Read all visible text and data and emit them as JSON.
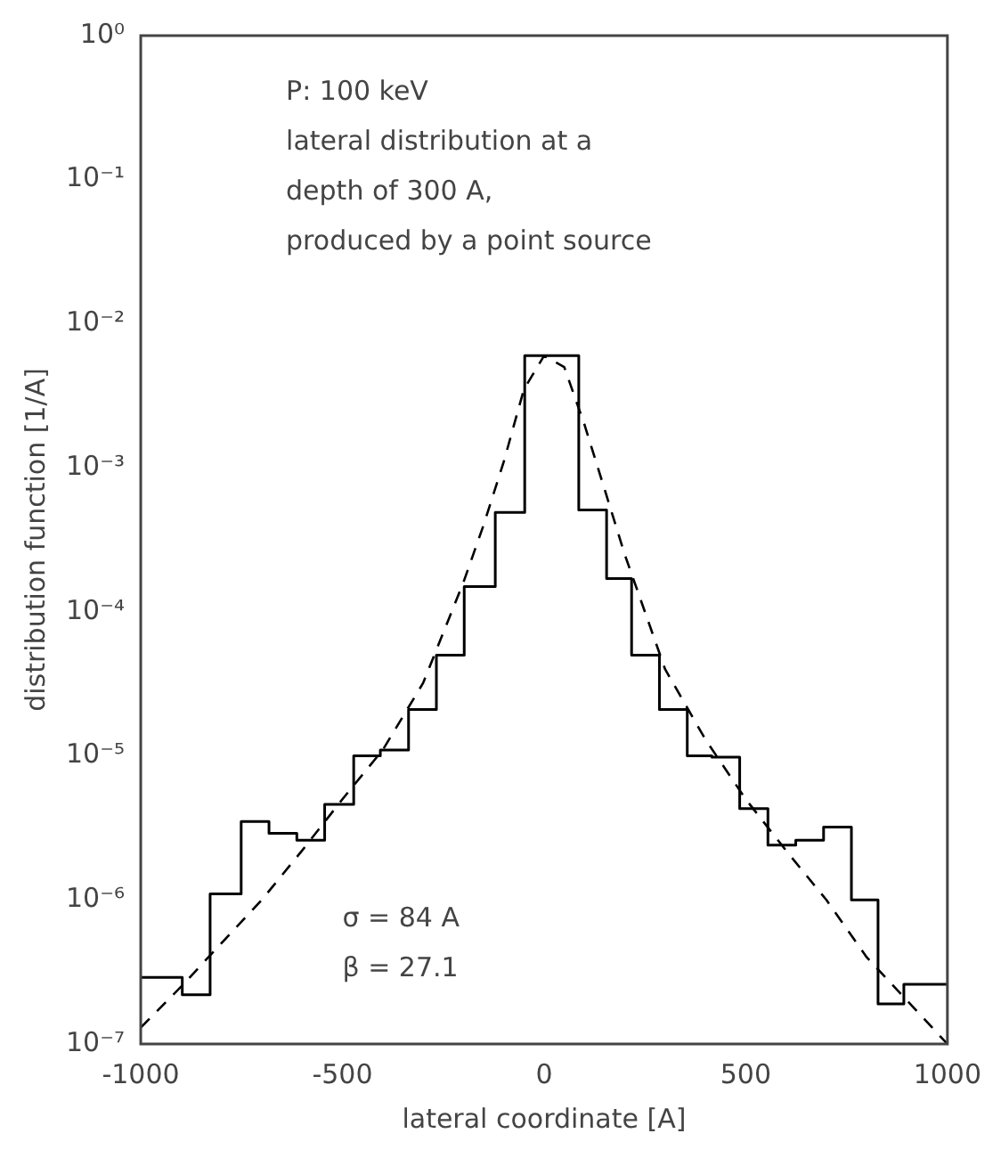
{
  "chart_data": {
    "type": "histogram",
    "xlabel": "lateral coordinate [A]",
    "ylabel": "distribution function [1/A]",
    "bins": [
      -1000,
      -897,
      -828,
      -751,
      -682,
      -613,
      -544,
      -472,
      -406,
      -336,
      -267,
      -198,
      -121,
      -48,
      86,
      155,
      217,
      286,
      355,
      416,
      485,
      555,
      624,
      693,
      762,
      828,
      892,
      1000
    ],
    "values": [
      2.9e-07,
      2.2e-07,
      1.1e-06,
      3.5e-06,
      2.9e-06,
      2.6e-06,
      4.6e-06,
      1e-05,
      1.1e-05,
      2.1e-05,
      5e-05,
      0.00015,
      0.00049,
      0.006,
      0.00051,
      0.00017,
      5e-05,
      2.1e-05,
      1e-05,
      9.8e-06,
      4.3e-06,
      2.4e-06,
      2.6e-06,
      3.2e-06,
      1e-06,
      1.9e-07,
      2.6e-07
    ],
    "color": "#000000",
    "series": [
      {
        "type": "line",
        "color": "#000000",
        "line_style": "dashed",
        "x": [
          -1000,
          -900,
          -800,
          -700,
          -600,
          -500,
          -400,
          -300,
          -200,
          -150,
          -100,
          -50,
          0,
          50,
          100,
          150,
          200,
          300,
          400,
          500,
          600,
          700,
          800,
          900,
          1000
        ],
        "values": [
          1.3e-07,
          2.5e-07,
          5e-07,
          1e-06,
          2.2e-06,
          5e-06,
          1.1e-05,
          3.2e-05,
          0.00016,
          0.0004,
          0.0011,
          0.0035,
          0.006,
          0.005,
          0.002,
          0.00071,
          0.00025,
          4e-05,
          1.3e-05,
          5e-06,
          2.2e-06,
          1e-06,
          4e-07,
          2e-07,
          1e-07
        ]
      }
    ],
    "xlim": [
      -1000,
      1000
    ],
    "xticks": [
      -1000,
      -500,
      0,
      500,
      1000
    ],
    "ylim": [
      1e-07,
      1
    ],
    "yticks": [
      {
        "value": 1,
        "label": "10⁰"
      },
      {
        "value": 0.1,
        "label": "10⁻¹"
      },
      {
        "value": 0.01,
        "label": "10⁻²"
      },
      {
        "value": 0.001,
        "label": "10⁻³"
      },
      {
        "value": 0.0001,
        "label": "10⁻⁴"
      },
      {
        "value": 1e-05,
        "label": "10⁻⁵"
      },
      {
        "value": 1e-06,
        "label": "10⁻⁶"
      },
      {
        "value": 1e-07,
        "label": "10⁻⁷"
      }
    ],
    "log": true,
    "grid": false,
    "legend": false,
    "annotations": [
      "P: 100 keV",
      "lateral distribution at a",
      "depth of 300 A,",
      "produced by a point source",
      "σ = 84 A",
      "β = 27.1"
    ]
  }
}
